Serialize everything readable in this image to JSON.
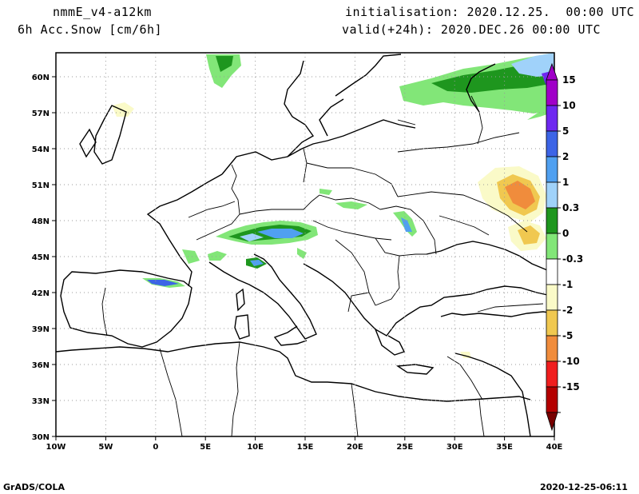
{
  "header": {
    "model": "nmmE_v4-a12km",
    "field": "6h Acc.Snow [cm/6h]",
    "init": "initialisation: 2020.12.25.  00:00 UTC",
    "valid": "valid(+24h): 2020.DEC.26 00:00 UTC"
  },
  "footer": {
    "credit": "GrADS/COLA",
    "stamp": "2020-12-25-06:11"
  },
  "map": {
    "lon_range": [
      -10,
      40
    ],
    "lat_range": [
      30,
      62
    ],
    "lon_ticks": [
      {
        "value": -10,
        "label": "10W"
      },
      {
        "value": -5,
        "label": "5W"
      },
      {
        "value": 0,
        "label": "0"
      },
      {
        "value": 5,
        "label": "5E"
      },
      {
        "value": 10,
        "label": "10E"
      },
      {
        "value": 15,
        "label": "15E"
      },
      {
        "value": 20,
        "label": "20E"
      },
      {
        "value": 25,
        "label": "25E"
      },
      {
        "value": 30,
        "label": "30E"
      },
      {
        "value": 35,
        "label": "35E"
      },
      {
        "value": 40,
        "label": "40E"
      }
    ],
    "lat_ticks": [
      {
        "value": 30,
        "label": "30N"
      },
      {
        "value": 33,
        "label": "33N"
      },
      {
        "value": 36,
        "label": "36N"
      },
      {
        "value": 39,
        "label": "39N"
      },
      {
        "value": 42,
        "label": "42N"
      },
      {
        "value": 45,
        "label": "45N"
      },
      {
        "value": 48,
        "label": "48N"
      },
      {
        "value": 51,
        "label": "51N"
      },
      {
        "value": 54,
        "label": "54N"
      },
      {
        "value": 57,
        "label": "57N"
      },
      {
        "value": 60,
        "label": "60N"
      }
    ],
    "grid": "dotted",
    "colorbar": [
      {
        "label": "15",
        "color": "#a000c8"
      },
      {
        "label": "10",
        "color": "#6e28f0"
      },
      {
        "label": "5",
        "color": "#3c64e6"
      },
      {
        "label": "2",
        "color": "#50a0f0"
      },
      {
        "label": "1",
        "color": "#a0d2fa"
      },
      {
        "label": "0.3",
        "color": "#1e961e"
      },
      {
        "label": "0",
        "color": "#82e678"
      },
      {
        "label": "-0.3",
        "color": "#ffffff"
      },
      {
        "label": "-1",
        "color": "#fafac8"
      },
      {
        "label": "-2",
        "color": "#f0c850"
      },
      {
        "label": "-5",
        "color": "#f08c3c"
      },
      {
        "label": "-10",
        "color": "#f01e1e"
      },
      {
        "label": "-15",
        "color": "#b40000"
      }
    ],
    "colorbar_top_arrow": "#a000c8",
    "colorbar_bottom_arrow": "#780000"
  }
}
